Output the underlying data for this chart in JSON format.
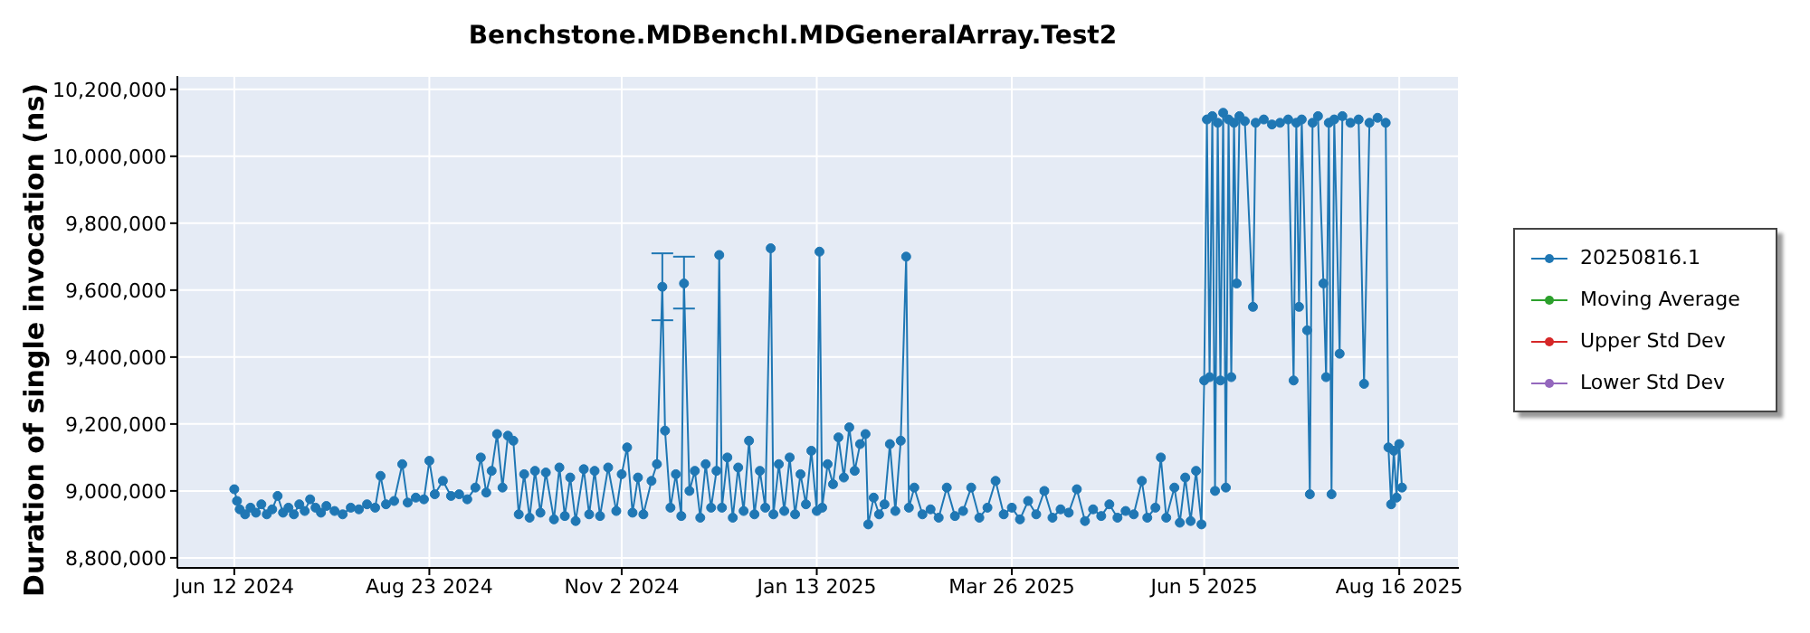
{
  "chart_data": {
    "type": "line",
    "title": "Benchstone.MDBenchI.MDGeneralArray.Test2",
    "ylabel": "Duration of single invocation (ns)",
    "x": [
      "2024-06-12",
      "2024-06-13",
      "2024-06-14",
      "2024-06-16",
      "2024-06-18",
      "2024-06-20",
      "2024-06-22",
      "2024-06-24",
      "2024-06-26",
      "2024-06-28",
      "2024-06-30",
      "2024-07-02",
      "2024-07-04",
      "2024-07-06",
      "2024-07-08",
      "2024-07-10",
      "2024-07-12",
      "2024-07-14",
      "2024-07-16",
      "2024-07-19",
      "2024-07-22",
      "2024-07-25",
      "2024-07-28",
      "2024-07-31",
      "2024-08-03",
      "2024-08-05",
      "2024-08-07",
      "2024-08-10",
      "2024-08-13",
      "2024-08-15",
      "2024-08-18",
      "2024-08-21",
      "2024-08-23",
      "2024-08-25",
      "2024-08-28",
      "2024-08-31",
      "2024-09-03",
      "2024-09-06",
      "2024-09-09",
      "2024-09-11",
      "2024-09-13",
      "2024-09-15",
      "2024-09-17",
      "2024-09-19",
      "2024-09-21",
      "2024-09-23",
      "2024-09-25",
      "2024-09-27",
      "2024-09-29",
      "2024-10-01",
      "2024-10-03",
      "2024-10-05",
      "2024-10-08",
      "2024-10-10",
      "2024-10-12",
      "2024-10-14",
      "2024-10-16",
      "2024-10-19",
      "2024-10-21",
      "2024-10-23",
      "2024-10-25",
      "2024-10-28",
      "2024-10-31",
      "2024-11-02",
      "2024-11-04",
      "2024-11-06",
      "2024-11-08",
      "2024-11-10",
      "2024-11-13",
      "2024-11-15",
      "2024-11-17",
      "2024-11-18",
      "2024-11-20",
      "2024-11-22",
      "2024-11-24",
      "2024-11-25",
      "2024-11-27",
      "2024-11-29",
      "2024-12-01",
      "2024-12-03",
      "2024-12-05",
      "2024-12-07",
      "2024-12-08",
      "2024-12-09",
      "2024-12-11",
      "2024-12-13",
      "2024-12-15",
      "2024-12-17",
      "2024-12-19",
      "2024-12-21",
      "2024-12-23",
      "2024-12-25",
      "2024-12-27",
      "2024-12-28",
      "2024-12-30",
      "2025-01-01",
      "2025-01-03",
      "2025-01-05",
      "2025-01-07",
      "2025-01-09",
      "2025-01-11",
      "2025-01-13",
      "2025-01-14",
      "2025-01-15",
      "2025-01-17",
      "2025-01-19",
      "2025-01-21",
      "2025-01-23",
      "2025-01-25",
      "2025-01-27",
      "2025-01-29",
      "2025-01-31",
      "2025-02-01",
      "2025-02-03",
      "2025-02-05",
      "2025-02-07",
      "2025-02-09",
      "2025-02-11",
      "2025-02-13",
      "2025-02-15",
      "2025-02-16",
      "2025-02-18",
      "2025-02-21",
      "2025-02-24",
      "2025-02-27",
      "2025-03-02",
      "2025-03-05",
      "2025-03-08",
      "2025-03-11",
      "2025-03-14",
      "2025-03-17",
      "2025-03-20",
      "2025-03-23",
      "2025-03-26",
      "2025-03-29",
      "2025-04-01",
      "2025-04-04",
      "2025-04-07",
      "2025-04-10",
      "2025-04-13",
      "2025-04-16",
      "2025-04-19",
      "2025-04-22",
      "2025-04-25",
      "2025-04-28",
      "2025-05-01",
      "2025-05-04",
      "2025-05-07",
      "2025-05-10",
      "2025-05-13",
      "2025-05-15",
      "2025-05-18",
      "2025-05-20",
      "2025-05-22",
      "2025-05-25",
      "2025-05-27",
      "2025-05-29",
      "2025-05-31",
      "2025-06-02",
      "2025-06-04",
      "2025-06-05",
      "2025-06-06",
      "2025-06-07",
      "2025-06-08",
      "2025-06-09",
      "2025-06-10",
      "2025-06-11",
      "2025-06-12",
      "2025-06-13",
      "2025-06-14",
      "2025-06-15",
      "2025-06-16",
      "2025-06-17",
      "2025-06-18",
      "2025-06-20",
      "2025-06-23",
      "2025-06-24",
      "2025-06-27",
      "2025-06-30",
      "2025-07-03",
      "2025-07-06",
      "2025-07-08",
      "2025-07-09",
      "2025-07-10",
      "2025-07-11",
      "2025-07-13",
      "2025-07-14",
      "2025-07-15",
      "2025-07-17",
      "2025-07-19",
      "2025-07-20",
      "2025-07-21",
      "2025-07-22",
      "2025-07-23",
      "2025-07-25",
      "2025-07-26",
      "2025-07-29",
      "2025-08-01",
      "2025-08-03",
      "2025-08-05",
      "2025-08-08",
      "2025-08-11",
      "2025-08-12",
      "2025-08-13",
      "2025-08-14",
      "2025-08-15",
      "2025-08-16",
      "2025-08-17"
    ],
    "series": [
      {
        "name": "20250816.1",
        "color": "#1f77b4",
        "values": [
          9005000,
          8970000,
          8945000,
          8930000,
          8950000,
          8935000,
          8960000,
          8930000,
          8945000,
          8985000,
          8935000,
          8950000,
          8930000,
          8960000,
          8940000,
          8975000,
          8950000,
          8935000,
          8955000,
          8940000,
          8930000,
          8950000,
          8945000,
          8960000,
          8950000,
          9045000,
          8960000,
          8970000,
          9080000,
          8965000,
          8980000,
          8975000,
          9090000,
          8990000,
          9030000,
          8985000,
          8990000,
          8975000,
          9010000,
          9100000,
          8995000,
          9060000,
          9170000,
          9010000,
          9165000,
          9150000,
          8930000,
          9050000,
          8920000,
          9060000,
          8935000,
          9055000,
          8915000,
          9070000,
          8925000,
          9040000,
          8910000,
          9065000,
          8930000,
          9060000,
          8925000,
          9070000,
          8940000,
          9050000,
          9130000,
          8935000,
          9040000,
          8930000,
          9030000,
          9080000,
          9610000,
          9180000,
          8950000,
          9050000,
          8925000,
          9620000,
          9000000,
          9060000,
          8920000,
          9080000,
          8950000,
          9060000,
          9705000,
          8950000,
          9100000,
          8920000,
          9070000,
          8940000,
          9150000,
          8930000,
          9060000,
          8950000,
          9725000,
          8930000,
          9080000,
          8940000,
          9100000,
          8930000,
          9050000,
          8960000,
          9120000,
          8940000,
          9715000,
          8950000,
          9080000,
          9020000,
          9160000,
          9040000,
          9190000,
          9060000,
          9140000,
          9170000,
          8900000,
          8980000,
          8930000,
          8960000,
          9140000,
          8940000,
          9150000,
          9700000,
          8950000,
          9010000,
          8930000,
          8945000,
          8920000,
          9010000,
          8925000,
          8940000,
          9010000,
          8920000,
          8950000,
          9030000,
          8930000,
          8950000,
          8915000,
          8970000,
          8930000,
          9000000,
          8920000,
          8945000,
          8935000,
          9005000,
          8910000,
          8945000,
          8925000,
          8960000,
          8920000,
          8940000,
          8930000,
          9030000,
          8920000,
          8950000,
          9100000,
          8920000,
          9010000,
          8905000,
          9040000,
          8910000,
          9060000,
          8900000,
          9330000,
          10110000,
          9340000,
          10120000,
          9000000,
          10100000,
          9330000,
          10130000,
          9010000,
          10110000,
          9340000,
          10100000,
          9620000,
          10120000,
          10105000,
          9550000,
          10100000,
          10110000,
          10095000,
          10100000,
          10110000,
          9330000,
          10100000,
          9550000,
          10110000,
          9480000,
          8990000,
          10100000,
          10120000,
          9620000,
          9340000,
          10100000,
          8990000,
          10110000,
          9410000,
          10120000,
          10100000,
          10110000,
          9320000,
          10100000,
          10115000,
          10100000,
          9130000,
          8960000,
          9120000,
          8980000,
          9140000,
          9010000
        ],
        "errors": [
          null,
          null,
          null,
          null,
          null,
          null,
          null,
          null,
          null,
          null,
          null,
          null,
          null,
          null,
          null,
          null,
          null,
          null,
          null,
          null,
          null,
          null,
          null,
          null,
          null,
          null,
          null,
          null,
          null,
          null,
          null,
          null,
          null,
          null,
          null,
          null,
          null,
          null,
          null,
          null,
          null,
          null,
          null,
          null,
          null,
          null,
          null,
          null,
          null,
          null,
          null,
          null,
          null,
          null,
          null,
          null,
          null,
          null,
          null,
          null,
          null,
          null,
          null,
          null,
          null,
          null,
          null,
          null,
          null,
          null,
          [
            9510000,
            9710000
          ],
          null,
          null,
          null,
          null,
          [
            9545000,
            9700000
          ],
          null,
          null,
          null,
          null,
          null,
          null,
          null,
          null,
          null,
          null,
          null,
          null,
          null,
          null,
          null,
          null,
          null,
          null,
          null,
          null,
          null,
          null,
          null,
          null,
          null,
          null,
          null,
          null,
          null,
          null,
          null,
          null,
          null,
          null,
          null,
          null,
          null,
          null,
          null,
          null,
          null,
          null,
          null,
          null,
          null,
          null,
          null,
          null,
          null,
          null,
          null,
          null,
          null,
          null,
          null,
          null,
          null,
          null,
          null,
          null,
          null,
          null,
          null,
          null,
          null,
          null,
          null,
          null,
          null,
          null,
          null,
          null,
          null,
          null,
          null,
          null,
          null,
          null,
          null,
          null,
          null,
          null,
          null,
          null,
          null,
          null,
          null,
          null,
          null,
          null,
          null,
          null,
          null,
          null,
          null,
          null,
          null,
          null,
          null,
          null,
          null,
          null,
          null,
          null,
          null,
          null,
          null,
          null,
          null,
          null,
          null,
          null,
          null,
          null,
          null,
          null,
          null,
          null,
          null,
          null,
          null,
          null,
          null,
          null,
          null,
          null,
          null,
          null,
          null,
          null,
          null,
          null
        ]
      },
      {
        "name": "Moving Average",
        "color": "#2ca02c",
        "values": [
          null,
          null,
          null,
          null,
          null,
          null,
          null,
          null,
          null,
          null,
          null,
          null,
          null,
          null,
          null,
          null,
          null,
          null,
          null,
          null,
          null,
          null,
          null,
          null,
          null,
          null,
          null,
          null,
          null,
          null,
          null,
          null,
          null,
          null,
          null,
          null,
          null,
          null,
          null,
          null,
          null,
          null,
          null,
          null,
          null,
          null,
          null,
          null,
          null,
          null,
          null,
          null,
          null,
          null,
          null,
          null,
          null,
          null,
          null,
          null,
          null,
          null,
          null,
          null,
          null,
          null,
          null,
          null,
          null,
          null,
          null,
          null,
          null,
          null,
          null,
          null,
          null,
          null,
          null,
          null,
          null,
          null,
          null,
          null,
          null,
          null,
          null,
          null,
          null,
          null,
          null,
          null,
          null,
          null,
          null,
          null,
          null,
          null,
          null,
          null,
          null,
          null,
          null,
          null,
          null,
          null,
          null,
          null,
          null,
          null,
          null,
          null,
          null,
          null,
          null,
          null,
          null,
          null,
          null,
          null,
          null,
          null,
          null,
          null,
          null,
          null,
          null,
          null,
          null,
          null,
          null,
          null,
          null,
          null,
          null,
          null,
          null,
          null,
          null,
          null,
          null,
          null,
          null,
          null,
          null,
          null,
          null,
          null,
          null,
          null,
          null,
          null,
          null,
          null,
          null,
          null,
          null,
          null,
          null,
          null,
          null,
          null,
          null,
          null,
          null,
          null,
          null,
          null,
          null,
          null,
          null,
          null,
          null,
          null,
          null,
          null,
          null,
          null,
          null,
          null,
          null,
          null,
          null,
          null,
          null,
          null,
          null,
          null,
          null,
          null,
          null,
          null,
          null,
          null,
          null,
          null,
          null,
          null,
          null,
          null,
          null,
          null,
          null,
          null,
          null,
          null,
          null,
          null
        ]
      },
      {
        "name": "Upper Std Dev",
        "color": "#d62728",
        "values": [
          null,
          null,
          null,
          null,
          null,
          null,
          null,
          null,
          null,
          null,
          null,
          null,
          null,
          null,
          null,
          null,
          null,
          null,
          null,
          null,
          null,
          null,
          null,
          null,
          null,
          null,
          null,
          null,
          null,
          null,
          null,
          null,
          null,
          null,
          null,
          null,
          null,
          null,
          null,
          null,
          null,
          null,
          null,
          null,
          null,
          null,
          null,
          null,
          null,
          null,
          null,
          null,
          null,
          null,
          null,
          null,
          null,
          null,
          null,
          null,
          null,
          null,
          null,
          null,
          null,
          null,
          null,
          null,
          null,
          null,
          null,
          null,
          null,
          null,
          null,
          null,
          null,
          null,
          null,
          null,
          null,
          null,
          null,
          null,
          null,
          null,
          null,
          null,
          null,
          null,
          null,
          null,
          null,
          null,
          null,
          null,
          null,
          null,
          null,
          null,
          null,
          null,
          null,
          null,
          null,
          null,
          null,
          null,
          null,
          null,
          null,
          null,
          null,
          null,
          null,
          null,
          null,
          null,
          null,
          null,
          null,
          null,
          null,
          null,
          null,
          null,
          null,
          null,
          null,
          null,
          null,
          null,
          null,
          null,
          null,
          null,
          null,
          null,
          null,
          null,
          null,
          null,
          null,
          null,
          null,
          null,
          null,
          null,
          null,
          null,
          null,
          null,
          null,
          null,
          null,
          null,
          null,
          null,
          null,
          null,
          null,
          null,
          null,
          null,
          null,
          null,
          null,
          null,
          null,
          null,
          null,
          null,
          null,
          null,
          null,
          null,
          null,
          null,
          null,
          null,
          null,
          null,
          null,
          null,
          null,
          null,
          null,
          null,
          null,
          null,
          null,
          null,
          null,
          null,
          null,
          null,
          null,
          null,
          null,
          null,
          null,
          null,
          null,
          null,
          null,
          null,
          null,
          null
        ]
      },
      {
        "name": "Lower Std Dev",
        "color": "#9467bd",
        "values": [
          null,
          null,
          null,
          null,
          null,
          null,
          null,
          null,
          null,
          null,
          null,
          null,
          null,
          null,
          null,
          null,
          null,
          null,
          null,
          null,
          null,
          null,
          null,
          null,
          null,
          null,
          null,
          null,
          null,
          null,
          null,
          null,
          null,
          null,
          null,
          null,
          null,
          null,
          null,
          null,
          null,
          null,
          null,
          null,
          null,
          null,
          null,
          null,
          null,
          null,
          null,
          null,
          null,
          null,
          null,
          null,
          null,
          null,
          null,
          null,
          null,
          null,
          null,
          null,
          null,
          null,
          null,
          null,
          null,
          null,
          null,
          null,
          null,
          null,
          null,
          null,
          null,
          null,
          null,
          null,
          null,
          null,
          null,
          null,
          null,
          null,
          null,
          null,
          null,
          null,
          null,
          null,
          null,
          null,
          null,
          null,
          null,
          null,
          null,
          null,
          null,
          null,
          null,
          null,
          null,
          null,
          null,
          null,
          null,
          null,
          null,
          null,
          null,
          null,
          null,
          null,
          null,
          null,
          null,
          null,
          null,
          null,
          null,
          null,
          null,
          null,
          null,
          null,
          null,
          null,
          null,
          null,
          null,
          null,
          null,
          null,
          null,
          null,
          null,
          null,
          null,
          null,
          null,
          null,
          null,
          null,
          null,
          null,
          null,
          null,
          null,
          null,
          null,
          null,
          null,
          null,
          null,
          null,
          null,
          null,
          null,
          null,
          null,
          null,
          null,
          null,
          null,
          null,
          null,
          null,
          null,
          null,
          null,
          null,
          null,
          null,
          null,
          null,
          null,
          null,
          null,
          null,
          null,
          null,
          null,
          null,
          null,
          null,
          null,
          null,
          null,
          null,
          null,
          null,
          null,
          null,
          null,
          null,
          null,
          null,
          null,
          null,
          null,
          null,
          null,
          null,
          null,
          null
        ]
      }
    ],
    "xlim": [
      "2024-05-22",
      "2025-09-07"
    ],
    "xticks": [
      {
        "value": "2024-06-12",
        "label": "Jun 12 2024"
      },
      {
        "value": "2024-08-23",
        "label": "Aug 23 2024"
      },
      {
        "value": "2024-11-02",
        "label": "Nov 2 2024"
      },
      {
        "value": "2025-01-13",
        "label": "Jan 13 2025"
      },
      {
        "value": "2025-03-26",
        "label": "Mar 26 2025"
      },
      {
        "value": "2025-06-05",
        "label": "Jun 5 2025"
      },
      {
        "value": "2025-08-16",
        "label": "Aug 16 2025"
      }
    ],
    "ylim": [
      8770000,
      10240000
    ],
    "yticks": [
      {
        "value": 8800000,
        "label": "8,800,000"
      },
      {
        "value": 9000000,
        "label": "9,000,000"
      },
      {
        "value": 9200000,
        "label": "9,200,000"
      },
      {
        "value": 9400000,
        "label": "9,400,000"
      },
      {
        "value": 9600000,
        "label": "9,600,000"
      },
      {
        "value": 9800000,
        "label": "9,800,000"
      },
      {
        "value": 10000000,
        "label": "10,000,000"
      },
      {
        "value": 10200000,
        "label": "10,200,000"
      }
    ],
    "grid": true,
    "legend": "right",
    "marker": "circle",
    "line_style": "solid"
  }
}
